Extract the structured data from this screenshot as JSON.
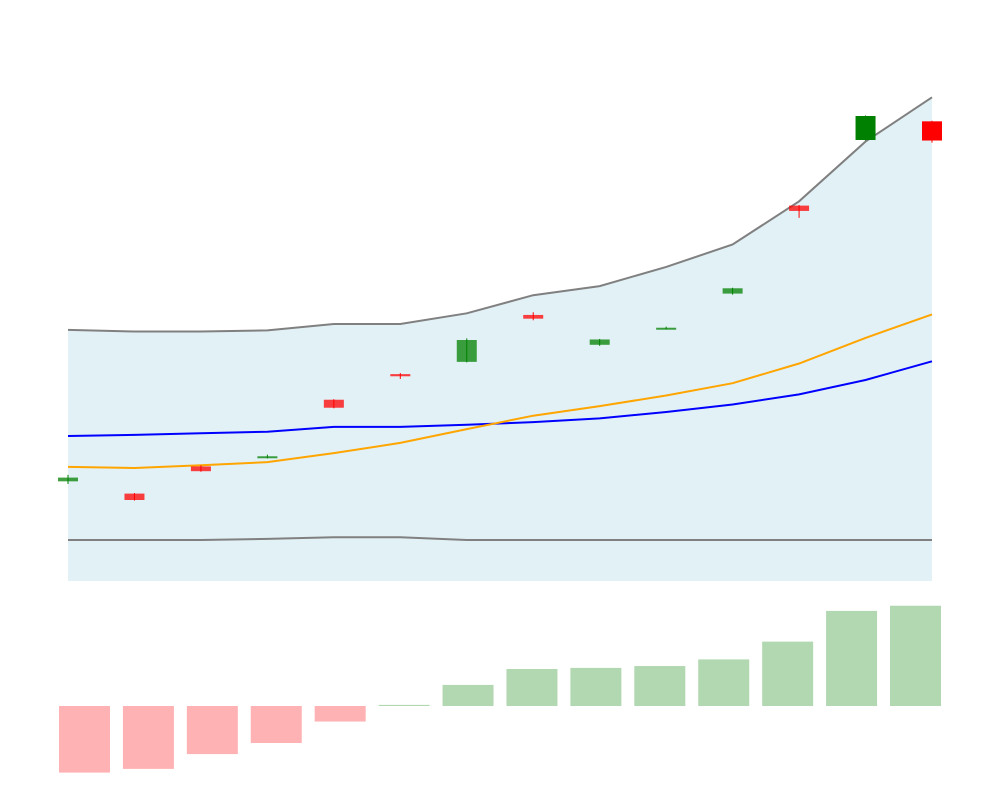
{
  "chart_data": [
    {
      "type": "candlestick",
      "x": [
        0,
        1,
        2,
        3,
        4,
        5,
        6,
        7,
        8,
        9,
        10,
        11,
        12,
        13
      ],
      "ylim": [
        -60,
        60
      ],
      "grid": false,
      "candles": [
        {
          "x": 0,
          "open": -19.0,
          "close": -18.3,
          "high": -17.8,
          "low": -19.5
        },
        {
          "x": 1,
          "open": -21.3,
          "close": -22.5,
          "high": -21.2,
          "low": -22.6
        },
        {
          "x": 2,
          "open": -16.2,
          "close": -17.1,
          "high": -16.0,
          "low": -17.2
        },
        {
          "x": 3,
          "open": -14.5,
          "close": -14.3,
          "high": -14.0,
          "low": -14.7
        },
        {
          "x": 4,
          "open": -3.7,
          "close": -5.2,
          "high": -3.6,
          "low": -5.3
        },
        {
          "x": 5,
          "open": 1.1,
          "close": 0.7,
          "high": 1.3,
          "low": 0.2
        },
        {
          "x": 6,
          "open": 3.4,
          "close": 7.5,
          "high": 7.8,
          "low": 3.3
        },
        {
          "x": 7,
          "open": 12.2,
          "close": 11.5,
          "high": 12.7,
          "low": 11.2
        },
        {
          "x": 8,
          "open": 6.6,
          "close": 7.6,
          "high": 7.7,
          "low": 6.4
        },
        {
          "x": 9,
          "open": 9.6,
          "close": 9.8,
          "high": 10.0,
          "low": 9.5
        },
        {
          "x": 10,
          "open": 16.2,
          "close": 17.2,
          "high": 17.3,
          "low": 16.0
        },
        {
          "x": 11,
          "open": 32.7,
          "close": 31.7,
          "high": 32.8,
          "low": 30.4
        },
        {
          "x": 12,
          "open": 45.0,
          "close": 49.5,
          "high": 49.6,
          "low": 44.9
        },
        {
          "x": 13,
          "open": 48.5,
          "close": 44.9,
          "high": 48.6,
          "low": 44.5
        }
      ],
      "series": [
        {
          "values": [
            -10.5,
            -10.3,
            -10.0,
            -9.7,
            -8.8,
            -8.8,
            -8.4,
            -7.9,
            -7.2,
            -6.0,
            -4.6,
            -2.7,
            0.0,
            3.5
          ],
          "color": "#0000ff"
        },
        {
          "values": [
            -16.3,
            -16.5,
            -16.0,
            -15.4,
            -13.7,
            -11.8,
            -9.2,
            -6.7,
            -4.9,
            -2.9,
            -0.6,
            3.1,
            7.9,
            12.3
          ],
          "color": "#ffa500"
        },
        {
          "values": [
            9.4,
            9.1,
            9.1,
            9.3,
            10.5,
            10.5,
            12.5,
            15.9,
            17.6,
            21.2,
            25.4,
            33.5,
            44.7,
            53.0
          ],
          "color": "#808080"
        },
        {
          "values": [
            -30.0,
            -30.0,
            -30.0,
            -29.8,
            -29.5,
            -29.5,
            -30.0,
            -30.0,
            -30.0,
            -30.0,
            -30.0,
            -30.0,
            -30.0,
            -30.0
          ],
          "color": "#808080"
        }
      ],
      "band_color": "#add8e6",
      "up_color": "#008000",
      "down_color": "#ff0000"
    },
    {
      "type": "bar",
      "x": [
        0,
        1,
        2,
        3,
        4,
        5,
        6,
        7,
        8,
        9,
        10,
        11,
        12,
        13
      ],
      "values": [
        -18,
        -17,
        -13,
        -10,
        -4.2,
        0.3,
        5.7,
        10,
        10.3,
        10.8,
        12.6,
        17.4,
        25.7,
        27.1
      ],
      "ylim": [
        -20,
        28
      ],
      "up_color": "#b2d8b2",
      "down_color": "#ffb2b4"
    }
  ]
}
